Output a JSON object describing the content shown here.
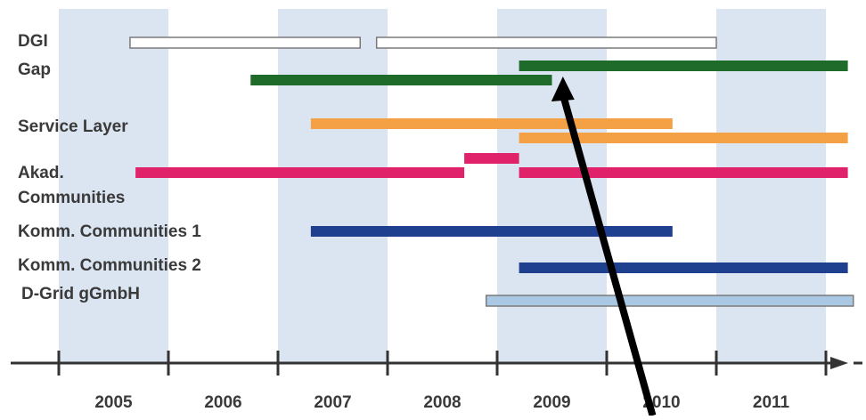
{
  "chart_data": {
    "type": "gantt",
    "title": "",
    "xlabel": "",
    "ylabel": "",
    "x_ticks": [
      "2005",
      "2006",
      "2007",
      "2008",
      "2009",
      "2010",
      "2011"
    ],
    "xlim": [
      2004.5,
      2011.85
    ],
    "alternating_year_bands": [
      "2005",
      "2007",
      "2009",
      "2011"
    ],
    "rows": [
      {
        "name": "DGI",
        "bars": [
          {
            "start": 2005.15,
            "end": 2007.25,
            "color": "#ffffff",
            "outline": true
          },
          {
            "start": 2007.4,
            "end": 2010.5,
            "color": "#ffffff",
            "outline": true
          }
        ]
      },
      {
        "name": "Gap",
        "bars": [
          {
            "start": 2006.25,
            "end": 2009.0,
            "color": "#1f6b2a"
          },
          {
            "start": 2008.7,
            "end": 2011.7,
            "color": "#1f6b2a"
          }
        ]
      },
      {
        "name": "Service Layer",
        "bars": [
          {
            "start": 2006.8,
            "end": 2010.1,
            "color": "#f4a044"
          },
          {
            "start": 2008.7,
            "end": 2011.7,
            "color": "#f4a044"
          }
        ]
      },
      {
        "name": "Akad. Communities",
        "bars": [
          {
            "start": 2005.2,
            "end": 2008.2,
            "color": "#e0226a"
          },
          {
            "start": 2008.2,
            "end": 2008.7,
            "color": "#e0226a"
          },
          {
            "start": 2008.7,
            "end": 2011.7,
            "color": "#e0226a"
          }
        ]
      },
      {
        "name": "Komm. Communities 1",
        "bars": [
          {
            "start": 2006.8,
            "end": 2010.1,
            "color": "#1f3f8f"
          }
        ]
      },
      {
        "name": "Komm. Communities 2",
        "bars": [
          {
            "start": 2008.7,
            "end": 2011.7,
            "color": "#1f3f8f"
          }
        ]
      },
      {
        "name": "D-Grid gGmbH",
        "bars": [
          {
            "start": 2008.4,
            "end": 2011.75,
            "color": "#a9c8e4",
            "outline": true
          }
        ]
      }
    ],
    "colors": {
      "band": "#dbe4f1",
      "axis": "#333333",
      "arrow": "#000000"
    },
    "annotation": {
      "type": "arrow",
      "description": "black arrow pointing up to the Gap bar",
      "from": {
        "x": 2010.0,
        "row": "axis"
      },
      "to": {
        "x": 2009.1,
        "row": "Gap"
      }
    },
    "legend": "none",
    "grid": false
  },
  "labels": {
    "dgi": "DGI",
    "gap": "Gap",
    "service_layer": "Service Layer",
    "akad_line1": "Akad.",
    "akad_line2": "Communities",
    "komm1": "Komm. Communities 1",
    "komm2": "Komm. Communities 2",
    "dgrid": "D-Grid gGmbH"
  }
}
